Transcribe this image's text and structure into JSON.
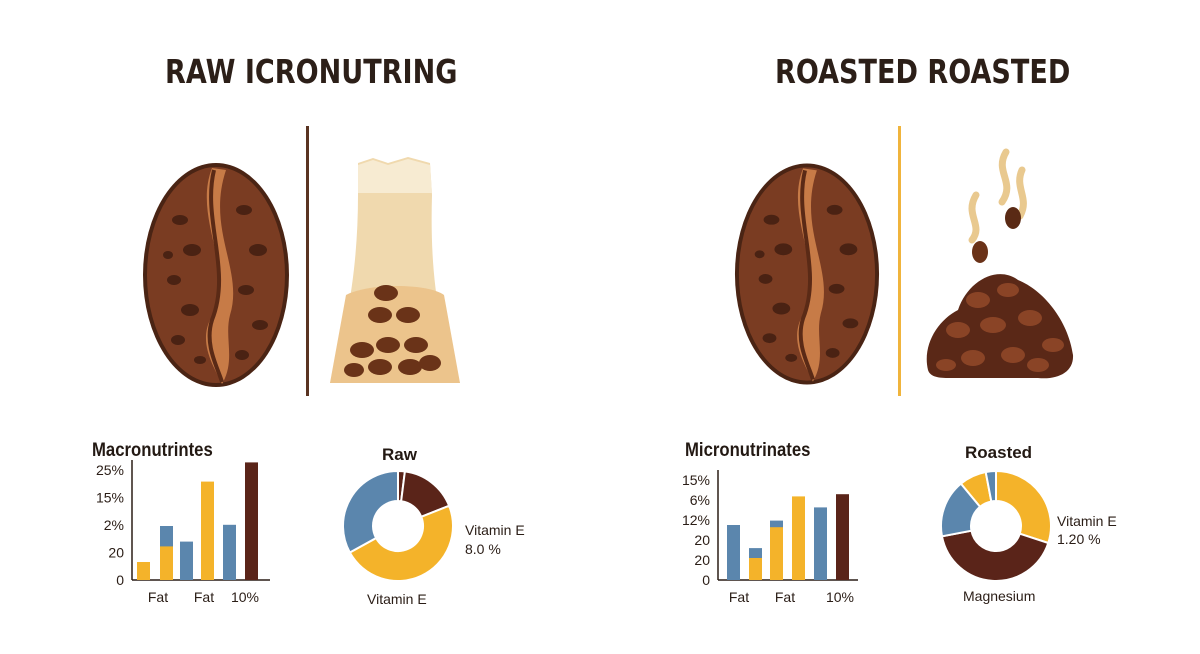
{
  "titles": {
    "left": "RAW ICRONUTRING",
    "right": "ROASTED ROASTED"
  },
  "colors": {
    "bean_dark": "#5c2e1a",
    "bean_mid": "#8a4a2a",
    "blue": "#5b86ad",
    "yellow": "#f4b32a",
    "dark_brown": "#5a2419",
    "cream": "#f0d9ae",
    "gold_divider": "#f0b43c"
  },
  "icons": {
    "left_bean": "coffee-bean-icon",
    "left_cup": "raw-grain-cup-icon",
    "right_bean": "coffee-bean-icon",
    "right_pile": "roasted-grounds-icon"
  },
  "chart_data": [
    {
      "type": "bar",
      "title": "Macronutrintes",
      "y_tick_labels": [
        "25%",
        "15%",
        "2%",
        "20",
        "0"
      ],
      "x_tick_labels": [
        "Fat",
        "Fat",
        "10%"
      ],
      "ylim": [
        0,
        100
      ],
      "bars": [
        {
          "color": "blue",
          "values": [
            12
          ]
        },
        {
          "color": "yellow",
          "values": [
            15
          ]
        },
        {
          "color": "blue",
          "values": [
            45
          ]
        },
        {
          "color": "yellow",
          "values": [
            28
          ]
        },
        {
          "color": "blue",
          "values": [
            32
          ]
        },
        {
          "color": "yellow",
          "values": [
            82
          ]
        },
        {
          "color": "blue",
          "values": [
            46
          ]
        },
        {
          "color": "dark_brown",
          "values": [
            98
          ]
        }
      ]
    },
    {
      "type": "pie",
      "title": "Raw",
      "labels": {
        "right_line1": "Vitamin E",
        "right_line2": "8.0 %",
        "bottom": "Vitamin E"
      },
      "slices": [
        {
          "color": "dark_brown",
          "value": 2
        },
        {
          "color": "dark_brown",
          "value": 17
        },
        {
          "color": "yellow",
          "value": 48
        },
        {
          "color": "blue",
          "value": 33
        }
      ]
    },
    {
      "type": "bar",
      "title": "Micronutrinates",
      "y_tick_labels": [
        "15%",
        "6%",
        "12%",
        "20",
        "20",
        "0"
      ],
      "x_tick_labels": [
        "Fat",
        "Fat",
        "10%"
      ],
      "ylim": [
        0,
        100
      ],
      "bars": [
        {
          "color": "blue",
          "values": [
            50
          ]
        },
        {
          "color": "blue",
          "values": [
            29
          ]
        },
        {
          "color": "yellow",
          "values": [
            20
          ]
        },
        {
          "color": "blue",
          "values": [
            54
          ]
        },
        {
          "color": "yellow",
          "values": [
            48
          ]
        },
        {
          "color": "yellow",
          "values": [
            76
          ]
        },
        {
          "color": "blue",
          "values": [
            66
          ]
        },
        {
          "color": "dark_brown",
          "values": [
            78
          ]
        }
      ]
    },
    {
      "type": "pie",
      "title": "Roasted",
      "labels": {
        "right_line1": "Vitamin E",
        "right_line2": "1.20 %",
        "bottom": "Magnesium"
      },
      "slices": [
        {
          "color": "yellow",
          "value": 30
        },
        {
          "color": "dark_brown",
          "value": 42
        },
        {
          "color": "blue",
          "value": 17
        },
        {
          "color": "yellow",
          "value": 8
        },
        {
          "color": "blue",
          "value": 3
        }
      ]
    }
  ]
}
